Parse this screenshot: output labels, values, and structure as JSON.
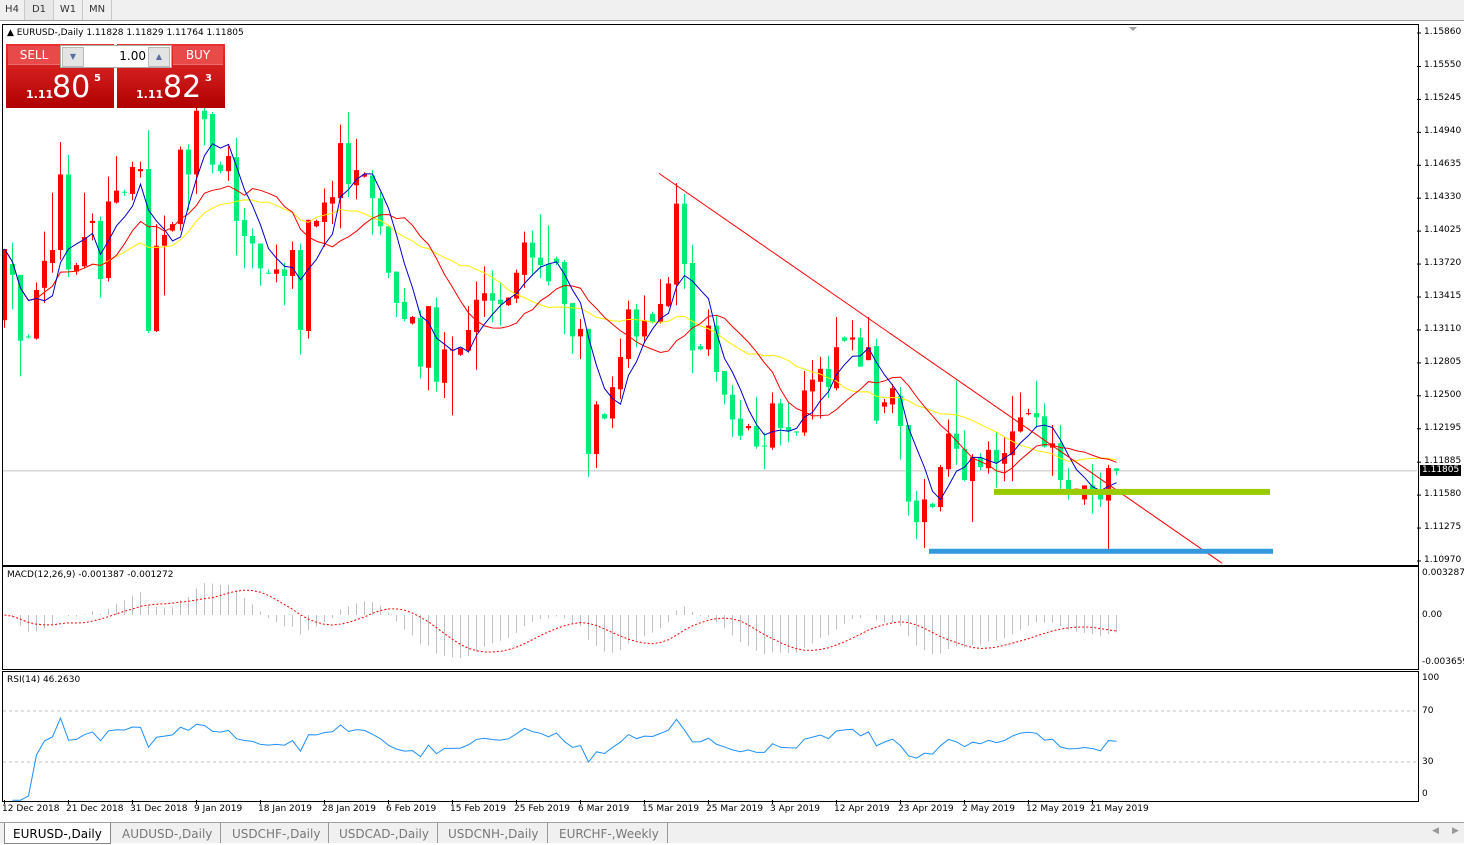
{
  "toolbar": {
    "timeframes": [
      {
        "label": "H4"
      },
      {
        "label": "D1",
        "active": true
      },
      {
        "label": "W1"
      },
      {
        "label": "MN"
      }
    ]
  },
  "chart": {
    "symbol_header": "EURUSD-,Daily",
    "ohlc_header": "1.11828 1.11829 1.11764 1.11805",
    "current_price": "1.11805"
  },
  "trade_panel": {
    "sell_label": "SELL",
    "buy_label": "BUY",
    "lot": "1.00",
    "sell_prefix": "1.11",
    "sell_big": "80",
    "sell_sup": "5",
    "buy_prefix": "1.11",
    "buy_big": "82",
    "buy_sup": "3"
  },
  "indicators": {
    "macd_header": "MACD(12,26,9) -0.001387 -0.001272",
    "rsi_header": "RSI(14) 46.2630",
    "macd_ticks": [
      "0.003287",
      "0.00",
      "-0.003659"
    ],
    "rsi_ticks": [
      "100",
      "70",
      "30",
      "0"
    ]
  },
  "tabs": [
    {
      "label": "EURUSD-,Daily",
      "active": true
    },
    {
      "label": "AUDUSD-,Daily"
    },
    {
      "label": "USDCHF-,Daily"
    },
    {
      "label": "USDCAD-,Daily"
    },
    {
      "label": "USDCNH-,Daily"
    },
    {
      "label": "EURCHF-,Weekly"
    }
  ],
  "chart_data": {
    "type": "candlestick",
    "symbol": "EURUSD-",
    "timeframe": "Daily",
    "ylim": [
      1.1097,
      1.1586
    ],
    "price_ticks": [
      "1.15860",
      "1.15550",
      "1.15245",
      "1.14940",
      "1.14635",
      "1.14330",
      "1.14025",
      "1.13720",
      "1.13415",
      "1.13110",
      "1.12805",
      "1.12500",
      "1.12195",
      "1.11885",
      "1.11580",
      "1.11275",
      "1.10970"
    ],
    "date_labels": [
      "12 Dec 2018",
      "21 Dec 2018",
      "31 Dec 2018",
      "9 Jan 2019",
      "18 Jan 2019",
      "28 Jan 2019",
      "6 Feb 2019",
      "15 Feb 2019",
      "25 Feb 2019",
      "6 Mar 2019",
      "15 Mar 2019",
      "25 Mar 2019",
      "3 Apr 2019",
      "12 Apr 2019",
      "23 Apr 2019",
      "2 May 2019",
      "12 May 2019",
      "21 May 2019"
    ],
    "colors": {
      "bull": "#ff0000",
      "bear": "#00ee76",
      "ma_fast": "#0000cc",
      "ma_mid": "#ff0000",
      "ma_slow": "#ffee00",
      "macd_hist": "#c0c0c0",
      "macd_signal": "#ff0000",
      "rsi": "#1e90ff",
      "trendline": "#ff0000",
      "support_green": "#99cc00",
      "support_blue": "#3399dd"
    },
    "drawn_objects": {
      "trendline": {
        "from_price": 1.1456,
        "to_price": 1.1095
      },
      "support_green": {
        "price": 1.1161
      },
      "support_blue": {
        "price": 1.1106
      },
      "bid_line": {
        "price": 1.11805
      }
    },
    "candles_ohlc": [
      [
        1.132,
        1.1386,
        1.1313,
        1.1386
      ],
      [
        1.1372,
        1.1392,
        1.133,
        1.1362
      ],
      [
        1.1362,
        1.1362,
        1.1268,
        1.1301
      ],
      [
        1.1305,
        1.1307,
        1.1303,
        1.1304
      ],
      [
        1.1303,
        1.1355,
        1.1302,
        1.1348
      ],
      [
        1.135,
        1.1402,
        1.1336,
        1.1375
      ],
      [
        1.1373,
        1.1438,
        1.1364,
        1.1385
      ],
      [
        1.1385,
        1.1485,
        1.1376,
        1.1455
      ],
      [
        1.1455,
        1.1473,
        1.136,
        1.1367
      ],
      [
        1.1365,
        1.1373,
        1.1362,
        1.1371
      ],
      [
        1.137,
        1.1438,
        1.1368,
        1.1397
      ],
      [
        1.141,
        1.1419,
        1.1394,
        1.1412
      ],
      [
        1.1412,
        1.1416,
        1.1341,
        1.1358
      ],
      [
        1.1359,
        1.1453,
        1.1356,
        1.143
      ],
      [
        1.1429,
        1.1472,
        1.1428,
        1.144
      ],
      [
        1.1439,
        1.1441,
        1.1435,
        1.1438
      ],
      [
        1.1437,
        1.1467,
        1.1431,
        1.1462
      ],
      [
        1.1458,
        1.1467,
        1.1452,
        1.146
      ],
      [
        1.146,
        1.1496,
        1.1308,
        1.131
      ],
      [
        1.131,
        1.1409,
        1.1309,
        1.1389
      ],
      [
        1.1389,
        1.1417,
        1.1343,
        1.1399
      ],
      [
        1.1403,
        1.1411,
        1.1402,
        1.1409
      ],
      [
        1.1409,
        1.1481,
        1.1403,
        1.1478
      ],
      [
        1.1478,
        1.1483,
        1.1422,
        1.1455
      ],
      [
        1.1455,
        1.1519,
        1.1437,
        1.1514
      ],
      [
        1.1514,
        1.1519,
        1.1482,
        1.1506
      ],
      [
        1.1511,
        1.1513,
        1.1456,
        1.1464
      ],
      [
        1.1464,
        1.1467,
        1.1456,
        1.1458
      ],
      [
        1.1458,
        1.1481,
        1.1449,
        1.1472
      ],
      [
        1.1471,
        1.1489,
        1.138,
        1.1412
      ],
      [
        1.1413,
        1.1424,
        1.1368,
        1.1398
      ],
      [
        1.1398,
        1.1405,
        1.1368,
        1.1391
      ],
      [
        1.1391,
        1.1391,
        1.1352,
        1.1368
      ],
      [
        1.1364,
        1.1367,
        1.1363,
        1.1363
      ],
      [
        1.1363,
        1.139,
        1.1355,
        1.1367
      ],
      [
        1.1367,
        1.1373,
        1.1334,
        1.1361
      ],
      [
        1.1361,
        1.1393,
        1.1349,
        1.1385
      ],
      [
        1.1385,
        1.1391,
        1.1288,
        1.1311
      ],
      [
        1.131,
        1.1413,
        1.1303,
        1.1413
      ],
      [
        1.1407,
        1.1413,
        1.1406,
        1.1412
      ],
      [
        1.1411,
        1.1442,
        1.1388,
        1.1429
      ],
      [
        1.1428,
        1.1449,
        1.1409,
        1.1434
      ],
      [
        1.1433,
        1.1501,
        1.1405,
        1.1484
      ],
      [
        1.1484,
        1.1513,
        1.1434,
        1.1446
      ],
      [
        1.1445,
        1.1488,
        1.1432,
        1.1459
      ],
      [
        1.1453,
        1.1457,
        1.1452,
        1.1455
      ],
      [
        1.1454,
        1.1459,
        1.1399,
        1.1433
      ],
      [
        1.1433,
        1.1439,
        1.1399,
        1.1407
      ],
      [
        1.1407,
        1.1407,
        1.1359,
        1.1364
      ],
      [
        1.1365,
        1.1365,
        1.1323,
        1.1336
      ],
      [
        1.1337,
        1.135,
        1.1319,
        1.1321
      ],
      [
        1.1317,
        1.1324,
        1.1316,
        1.1323
      ],
      [
        1.1322,
        1.1329,
        1.1266,
        1.1277
      ],
      [
        1.1276,
        1.1333,
        1.1255,
        1.1333
      ],
      [
        1.1332,
        1.1341,
        1.1254,
        1.1263
      ],
      [
        1.1262,
        1.1309,
        1.1248,
        1.1293
      ],
      [
        1.1292,
        1.1305,
        1.1232,
        1.1293
      ],
      [
        1.1288,
        1.1294,
        1.1287,
        1.1294
      ],
      [
        1.1292,
        1.1333,
        1.129,
        1.1311
      ],
      [
        1.1309,
        1.1356,
        1.1274,
        1.1339
      ],
      [
        1.1338,
        1.137,
        1.1323,
        1.1345
      ],
      [
        1.1345,
        1.1366,
        1.1318,
        1.1338
      ],
      [
        1.1339,
        1.1355,
        1.1315,
        1.1335
      ],
      [
        1.1334,
        1.1341,
        1.1333,
        1.1341
      ],
      [
        1.134,
        1.1367,
        1.1336,
        1.1364
      ],
      [
        1.1362,
        1.1402,
        1.135,
        1.1392
      ],
      [
        1.1392,
        1.1403,
        1.1361,
        1.1378
      ],
      [
        1.1378,
        1.1418,
        1.1359,
        1.1371
      ],
      [
        1.1372,
        1.1408,
        1.1352,
        1.1356
      ],
      [
        1.1377,
        1.1379,
        1.1371,
        1.1373
      ],
      [
        1.1374,
        1.1376,
        1.1307,
        1.1335
      ],
      [
        1.1336,
        1.1336,
        1.1289,
        1.1305
      ],
      [
        1.1305,
        1.1321,
        1.1284,
        1.1312
      ],
      [
        1.1312,
        1.1312,
        1.1175,
        1.1196
      ],
      [
        1.1196,
        1.1245,
        1.1183,
        1.1242
      ],
      [
        1.1233,
        1.1234,
        1.1228,
        1.1229
      ],
      [
        1.1229,
        1.1268,
        1.122,
        1.1258
      ],
      [
        1.1256,
        1.1303,
        1.1247,
        1.1286
      ],
      [
        1.1284,
        1.1338,
        1.1276,
        1.133
      ],
      [
        1.133,
        1.1335,
        1.1295,
        1.1305
      ],
      [
        1.1305,
        1.1343,
        1.1299,
        1.132
      ],
      [
        1.1326,
        1.1328,
        1.1317,
        1.1318
      ],
      [
        1.1318,
        1.1358,
        1.1317,
        1.1335
      ],
      [
        1.1333,
        1.136,
        1.1332,
        1.1354
      ],
      [
        1.1353,
        1.1447,
        1.1334,
        1.1428
      ],
      [
        1.1428,
        1.1437,
        1.1349,
        1.1372
      ],
      [
        1.1373,
        1.139,
        1.1271,
        1.1292
      ],
      [
        1.1296,
        1.1298,
        1.1292,
        1.1293
      ],
      [
        1.1293,
        1.133,
        1.1287,
        1.1315
      ],
      [
        1.1315,
        1.1324,
        1.1263,
        1.1272
      ],
      [
        1.1273,
        1.1273,
        1.1242,
        1.1251
      ],
      [
        1.1251,
        1.126,
        1.1212,
        1.1228
      ],
      [
        1.1229,
        1.1246,
        1.1209,
        1.1213
      ],
      [
        1.122,
        1.1224,
        1.1218,
        1.1222
      ],
      [
        1.1222,
        1.1249,
        1.1201,
        1.1203
      ],
      [
        1.1204,
        1.1216,
        1.1182,
        1.1203
      ],
      [
        1.1202,
        1.1253,
        1.12,
        1.1243
      ],
      [
        1.1243,
        1.1247,
        1.1204,
        1.122
      ],
      [
        1.1221,
        1.1244,
        1.1207,
        1.1217
      ],
      [
        1.1217,
        1.1217,
        1.1213,
        1.1216
      ],
      [
        1.1216,
        1.1273,
        1.1213,
        1.1255
      ],
      [
        1.1254,
        1.1283,
        1.1228,
        1.1265
      ],
      [
        1.1263,
        1.1286,
        1.1229,
        1.1275
      ],
      [
        1.1275,
        1.1287,
        1.1248,
        1.1258
      ],
      [
        1.1257,
        1.1323,
        1.1255,
        1.1295
      ],
      [
        1.1304,
        1.1305,
        1.13,
        1.1301
      ],
      [
        1.1302,
        1.132,
        1.1292,
        1.1304
      ],
      [
        1.1304,
        1.1313,
        1.1277,
        1.1277
      ],
      [
        1.1283,
        1.1323,
        1.1283,
        1.1295
      ],
      [
        1.1296,
        1.1303,
        1.1224,
        1.1227
      ],
      [
        1.124,
        1.1247,
        1.1234,
        1.1244
      ],
      [
        1.1242,
        1.1261,
        1.1234,
        1.1257
      ],
      [
        1.125,
        1.1258,
        1.1191,
        1.1222
      ],
      [
        1.1223,
        1.1223,
        1.1139,
        1.1152
      ],
      [
        1.1153,
        1.1162,
        1.1117,
        1.1133
      ],
      [
        1.1133,
        1.1173,
        1.1109,
        1.1154
      ],
      [
        1.115,
        1.1151,
        1.1146,
        1.1147
      ],
      [
        1.1147,
        1.1186,
        1.1143,
        1.1184
      ],
      [
        1.1182,
        1.1228,
        1.1175,
        1.1215
      ],
      [
        1.1215,
        1.1264,
        1.1186,
        1.1201
      ],
      [
        1.1201,
        1.1218,
        1.1171,
        1.1172
      ],
      [
        1.1171,
        1.1196,
        1.1133,
        1.1193
      ],
      [
        1.1193,
        1.1197,
        1.1181,
        1.1184
      ],
      [
        1.1183,
        1.1208,
        1.1178,
        1.12
      ],
      [
        1.12,
        1.1216,
        1.1165,
        1.1188
      ],
      [
        1.1187,
        1.1212,
        1.1171,
        1.1197
      ],
      [
        1.1195,
        1.125,
        1.1171,
        1.1217
      ],
      [
        1.1217,
        1.1253,
        1.1216,
        1.123
      ],
      [
        1.1233,
        1.1238,
        1.1232,
        1.1234
      ],
      [
        1.1234,
        1.1264,
        1.122,
        1.123
      ],
      [
        1.1231,
        1.1243,
        1.1202,
        1.1203
      ],
      [
        1.1202,
        1.1223,
        1.1176,
        1.1206
      ],
      [
        1.1206,
        1.1223,
        1.1163,
        1.1172
      ],
      [
        1.1172,
        1.1183,
        1.1154,
        1.1163
      ],
      [
        1.1163,
        1.1164,
        1.1162,
        1.1164
      ],
      [
        1.1154,
        1.1167,
        1.1149,
        1.1167
      ],
      [
        1.1167,
        1.1187,
        1.1141,
        1.1163
      ],
      [
        1.1163,
        1.1179,
        1.1147,
        1.1154
      ],
      [
        1.1153,
        1.1186,
        1.1108,
        1.1183
      ],
      [
        1.11828,
        1.11829,
        1.11764,
        1.11805
      ]
    ]
  }
}
